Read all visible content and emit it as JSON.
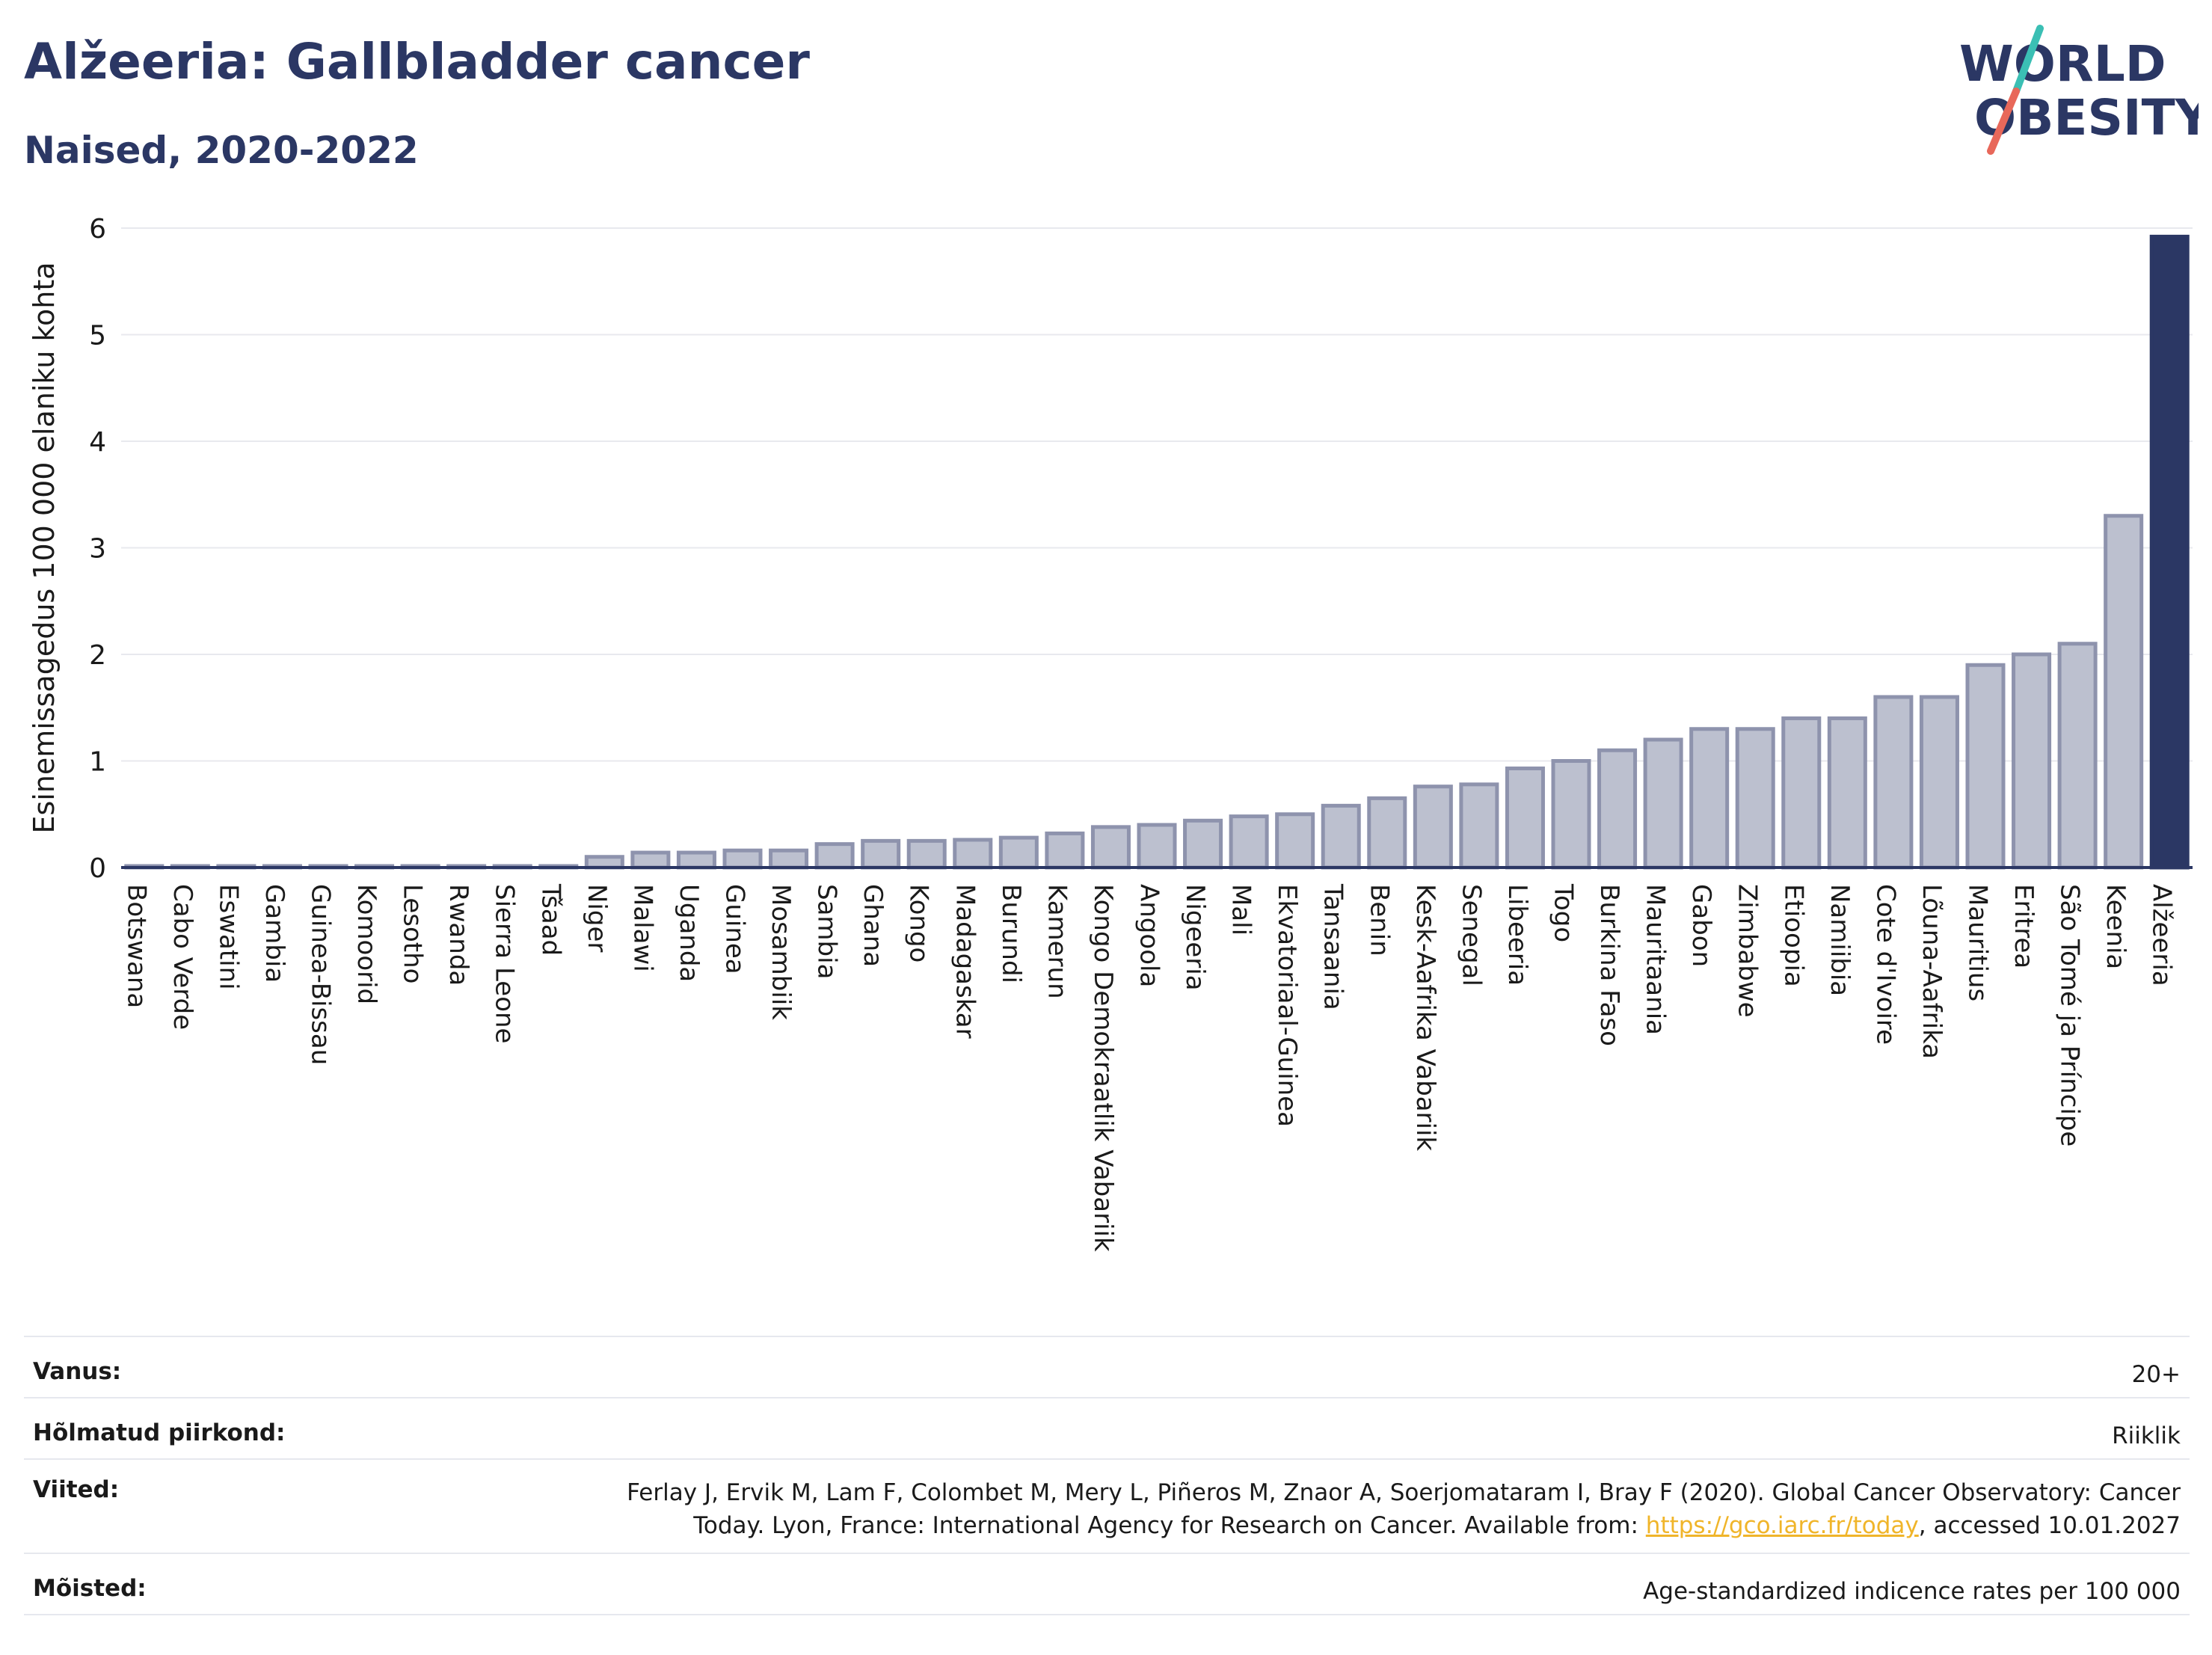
{
  "header": {
    "title": "Alžeeria: Gallbladder cancer",
    "subtitle": "Naised, 2020-2022"
  },
  "logo": {
    "line1": "WORLD",
    "line2": "OBESITY",
    "colors": {
      "text": "#2b3764",
      "slash_top": "#3bbfb4",
      "slash_bottom": "#e8685a"
    }
  },
  "chart_data": {
    "type": "bar",
    "ylabel": "Esinemissagedus 100 000 elaniku kohta",
    "ylim": [
      0,
      6
    ],
    "yticks": [
      "0",
      "1",
      "2",
      "3",
      "4",
      "5",
      "6"
    ],
    "grid": true,
    "highlight": "Alžeeria",
    "colors": {
      "bar": "#bcc0cf",
      "bar_edge": "#8e93ad",
      "highlight": "#2b3764",
      "grid": "#e8e9ee",
      "axis": "#2b3764"
    },
    "categories": [
      "Botswana",
      "Cabo Verde",
      "Eswatini",
      "Gambia",
      "Guinea-Bissau",
      "Komoorid",
      "Lesotho",
      "Rwanda",
      "Sierra Leone",
      "Tšaad",
      "Niger",
      "Malawi",
      "Uganda",
      "Guinea",
      "Mosambiik",
      "Sambia",
      "Ghana",
      "Kongo",
      "Madagaskar",
      "Burundi",
      "Kamerun",
      "Kongo Demokraatlik Vabariik",
      "Angoola",
      "Nigeeria",
      "Mali",
      "Ekvatoriaal-Guinea",
      "Tansaania",
      "Benin",
      "Kesk-Aafrika Vabariik",
      "Senegal",
      "Libeeria",
      "Togo",
      "Burkina Faso",
      "Mauritaania",
      "Gabon",
      "Zimbabwe",
      "Etioopia",
      "Namiibia",
      "Cote d'Ivoire",
      "Lõuna-Aafrika",
      "Mauritius",
      "Eritrea",
      "São Tomé ja Príncipe",
      "Keenia",
      "Alžeeria"
    ],
    "values": [
      0.01,
      0.01,
      0.01,
      0.01,
      0.01,
      0.01,
      0.01,
      0.01,
      0.01,
      0.01,
      0.1,
      0.14,
      0.14,
      0.16,
      0.16,
      0.22,
      0.25,
      0.25,
      0.26,
      0.28,
      0.32,
      0.38,
      0.4,
      0.44,
      0.48,
      0.5,
      0.58,
      0.65,
      0.76,
      0.78,
      0.93,
      1.0,
      1.1,
      1.2,
      1.3,
      1.3,
      1.4,
      1.4,
      1.6,
      1.6,
      1.9,
      2.0,
      2.1,
      3.3,
      5.92
    ]
  },
  "info": [
    {
      "label": "Vanus:",
      "value": "20+"
    },
    {
      "label": "Hõlmatud piirkond:",
      "value": "Riiklik"
    },
    {
      "label": "Viited:",
      "value_line1": "Ferlay J, Ervik M, Lam F, Colombet M, Mery L, Piñeros M, Znaor A, Soerjomataram I, Bray F (2020). Global Cancer Observatory: Cancer",
      "value_line2_pre": "Today. Lyon, France: International Agency for Research on Cancer. Available from: ",
      "link": "https://gco.iarc.fr/today",
      "value_line2_post": ", accessed 10.01.2027"
    },
    {
      "label": "Mõisted:",
      "value": "Age-standardized indicence rates per 100 000"
    }
  ]
}
